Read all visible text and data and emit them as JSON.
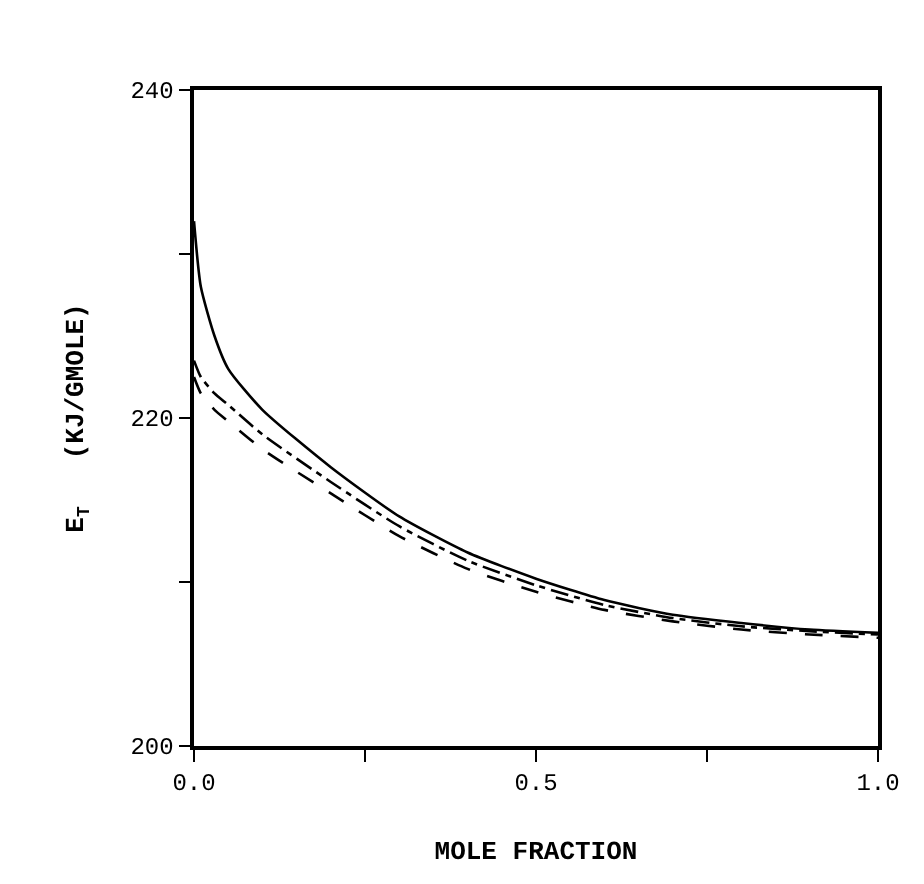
{
  "chart_data": {
    "type": "line",
    "xlabel": "MOLE FRACTION",
    "ylabel": "E$_{T}$   (KJ/GMOLE)",
    "x": [
      0,
      0.01,
      0.03,
      0.05,
      0.1,
      0.2,
      0.3,
      0.4,
      0.5,
      0.6,
      0.7,
      0.8,
      0.9,
      1.0
    ],
    "series": [
      {
        "color": "#000000",
        "line_style": "solid",
        "values": [
          232,
          228,
          225,
          223,
          220.5,
          217,
          214,
          211.8,
          210.2,
          208.9,
          208,
          207.5,
          207.1,
          206.9
        ]
      },
      {
        "color": "#000000",
        "line_style": "dashdot",
        "values": [
          223.5,
          222.5,
          221.5,
          220.8,
          219,
          216.1,
          213.4,
          211.3,
          209.8,
          208.6,
          207.8,
          207.3,
          207,
          206.8
        ]
      },
      {
        "color": "#000000",
        "line_style": "dashed",
        "values": [
          222.5,
          221.5,
          220.5,
          219.8,
          218.1,
          215.4,
          212.8,
          210.8,
          209.4,
          208.3,
          207.6,
          207.1,
          206.8,
          206.6
        ]
      }
    ],
    "xlim": [
      0,
      1
    ],
    "xticks": [
      {
        "value": 0,
        "label": "0.0"
      },
      {
        "value": 0.25,
        "label": null
      },
      {
        "value": 0.5,
        "label": "0.5"
      },
      {
        "value": 0.75,
        "label": null
      },
      {
        "value": 1,
        "label": "1.0"
      }
    ],
    "ylim": [
      200,
      240
    ],
    "yticks": [
      200,
      {
        "value": 210,
        "label": null
      },
      220,
      {
        "value": 230,
        "label": null
      },
      240
    ],
    "marker": "none"
  }
}
